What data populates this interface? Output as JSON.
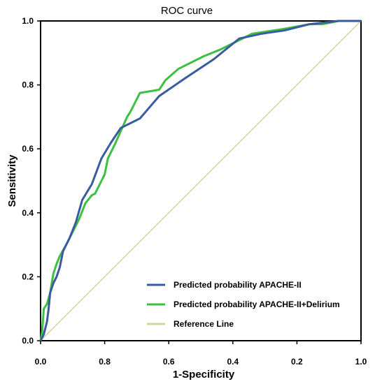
{
  "chart_data": {
    "type": "line",
    "title": "ROC curve",
    "xlabel": "1-Specificity",
    "ylabel": "Sensitivity",
    "xlim": [
      0.0,
      1.0
    ],
    "ylim": [
      0.0,
      1.0
    ],
    "x_tick_labels": [
      "0.0",
      "0.8",
      "0.6",
      "0.4",
      "0.2",
      "1.0"
    ],
    "y_tick_labels": [
      "0.0",
      "0.2",
      "0.4",
      "0.6",
      "0.8",
      "1.0"
    ],
    "y_ticks": [
      0.0,
      0.2,
      0.4,
      0.6,
      0.8,
      1.0
    ],
    "grid": false,
    "legend_position": "bottom-right",
    "series": [
      {
        "name": "Predicted probability APACHE-II",
        "color": "#3a5ba0",
        "points": [
          [
            0.0,
            0.0
          ],
          [
            0.01,
            0.02
          ],
          [
            0.02,
            0.06
          ],
          [
            0.025,
            0.1
          ],
          [
            0.03,
            0.15
          ],
          [
            0.04,
            0.18
          ],
          [
            0.05,
            0.2
          ],
          [
            0.06,
            0.23
          ],
          [
            0.07,
            0.28
          ],
          [
            0.09,
            0.32
          ],
          [
            0.11,
            0.37
          ],
          [
            0.13,
            0.44
          ],
          [
            0.16,
            0.49
          ],
          [
            0.19,
            0.57
          ],
          [
            0.22,
            0.62
          ],
          [
            0.25,
            0.665
          ],
          [
            0.31,
            0.695
          ],
          [
            0.37,
            0.765
          ],
          [
            0.45,
            0.82
          ],
          [
            0.54,
            0.88
          ],
          [
            0.62,
            0.945
          ],
          [
            0.69,
            0.96
          ],
          [
            0.76,
            0.97
          ],
          [
            0.84,
            0.99
          ],
          [
            0.93,
            1.0
          ],
          [
            1.0,
            1.0
          ]
        ]
      },
      {
        "name": "Predicted probability APACHE-II+Delirium",
        "color": "#3cc040",
        "points": [
          [
            0.0,
            0.0
          ],
          [
            0.005,
            0.03
          ],
          [
            0.01,
            0.1
          ],
          [
            0.02,
            0.115
          ],
          [
            0.03,
            0.15
          ],
          [
            0.04,
            0.21
          ],
          [
            0.05,
            0.24
          ],
          [
            0.06,
            0.265
          ],
          [
            0.08,
            0.3
          ],
          [
            0.1,
            0.34
          ],
          [
            0.12,
            0.38
          ],
          [
            0.14,
            0.43
          ],
          [
            0.16,
            0.455
          ],
          [
            0.17,
            0.46
          ],
          [
            0.19,
            0.5
          ],
          [
            0.2,
            0.52
          ],
          [
            0.21,
            0.57
          ],
          [
            0.23,
            0.61
          ],
          [
            0.25,
            0.655
          ],
          [
            0.27,
            0.7
          ],
          [
            0.28,
            0.715
          ],
          [
            0.31,
            0.775
          ],
          [
            0.37,
            0.785
          ],
          [
            0.39,
            0.815
          ],
          [
            0.43,
            0.85
          ],
          [
            0.51,
            0.89
          ],
          [
            0.56,
            0.91
          ],
          [
            0.62,
            0.94
          ],
          [
            0.66,
            0.96
          ],
          [
            0.76,
            0.975
          ],
          [
            0.84,
            0.99
          ],
          [
            0.88,
            0.99
          ],
          [
            0.93,
            1.0
          ],
          [
            1.0,
            1.0
          ]
        ]
      },
      {
        "name": "Reference Line",
        "color": "#d4d49e",
        "points": [
          [
            0.0,
            0.0
          ],
          [
            1.0,
            1.0
          ]
        ]
      }
    ]
  }
}
